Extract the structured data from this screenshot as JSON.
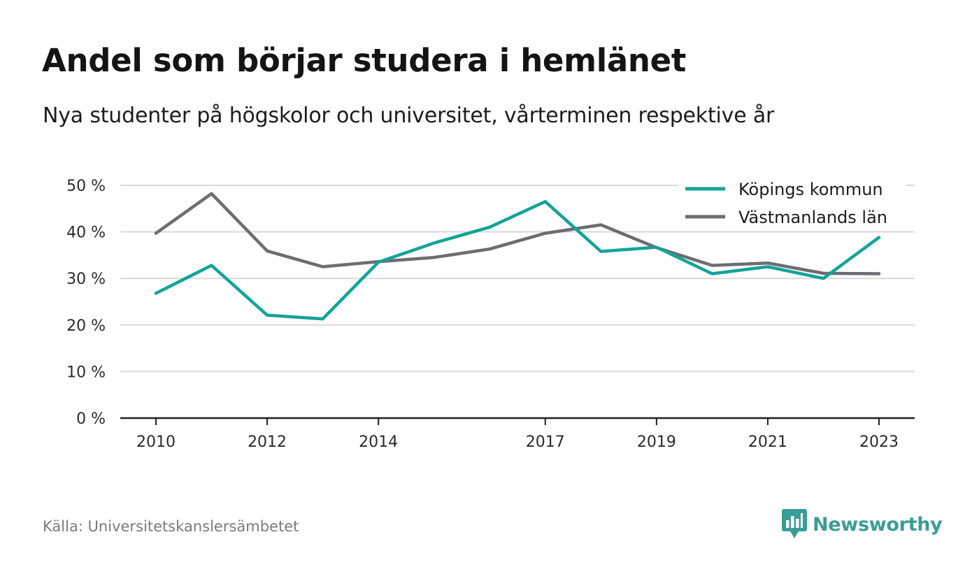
{
  "header": {
    "title": "Andel som börjar studera i hemlänet",
    "subtitle": "Nya studenter på högskolor och universitet, vårterminen respektive år"
  },
  "footer": {
    "source": "Källa: Universitetskanslersämbetet",
    "brand": "Newsworthy",
    "brand_icon": "newsworthy-logo-icon"
  },
  "colors": {
    "kopings": "#14a399",
    "vastmanland": "#6d6c72",
    "grid": "#d9d9d9",
    "axis": "#1e1e1e",
    "brand": "#3a9d96"
  },
  "chart_data": {
    "type": "line",
    "title": "Andel som börjar studera i hemlänet",
    "subtitle": "Nya studenter på högskolor och universitet, vårterminen respektive år",
    "x": [
      2010,
      2011,
      2012,
      2013,
      2014,
      2015,
      2016,
      2017,
      2018,
      2019,
      2020,
      2021,
      2022,
      2023
    ],
    "x_tick_labels": [
      "2010",
      "2012",
      "2014",
      "2017",
      "2019",
      "2021",
      "2023"
    ],
    "y_tick_labels": [
      "0 %",
      "10 %",
      "20 %",
      "30 %",
      "40 %",
      "50 %"
    ],
    "y_ticks": [
      0,
      10,
      20,
      30,
      40,
      50
    ],
    "ylim": [
      0,
      50
    ],
    "xlim": [
      2010,
      2023
    ],
    "grid": true,
    "legend_position": "top-right",
    "series": [
      {
        "name": "Köpings kommun",
        "color": "#14a399",
        "values": [
          26.8,
          32.8,
          22.1,
          21.3,
          33.5,
          37.6,
          41.0,
          46.5,
          35.8,
          36.7,
          31.0,
          32.5,
          30.0,
          38.8
        ]
      },
      {
        "name": "Västmanlands län",
        "color": "#6d6c72",
        "values": [
          39.7,
          48.2,
          35.9,
          32.5,
          33.6,
          34.5,
          36.3,
          39.7,
          41.5,
          36.6,
          32.8,
          33.3,
          31.1,
          31.0
        ]
      }
    ]
  }
}
